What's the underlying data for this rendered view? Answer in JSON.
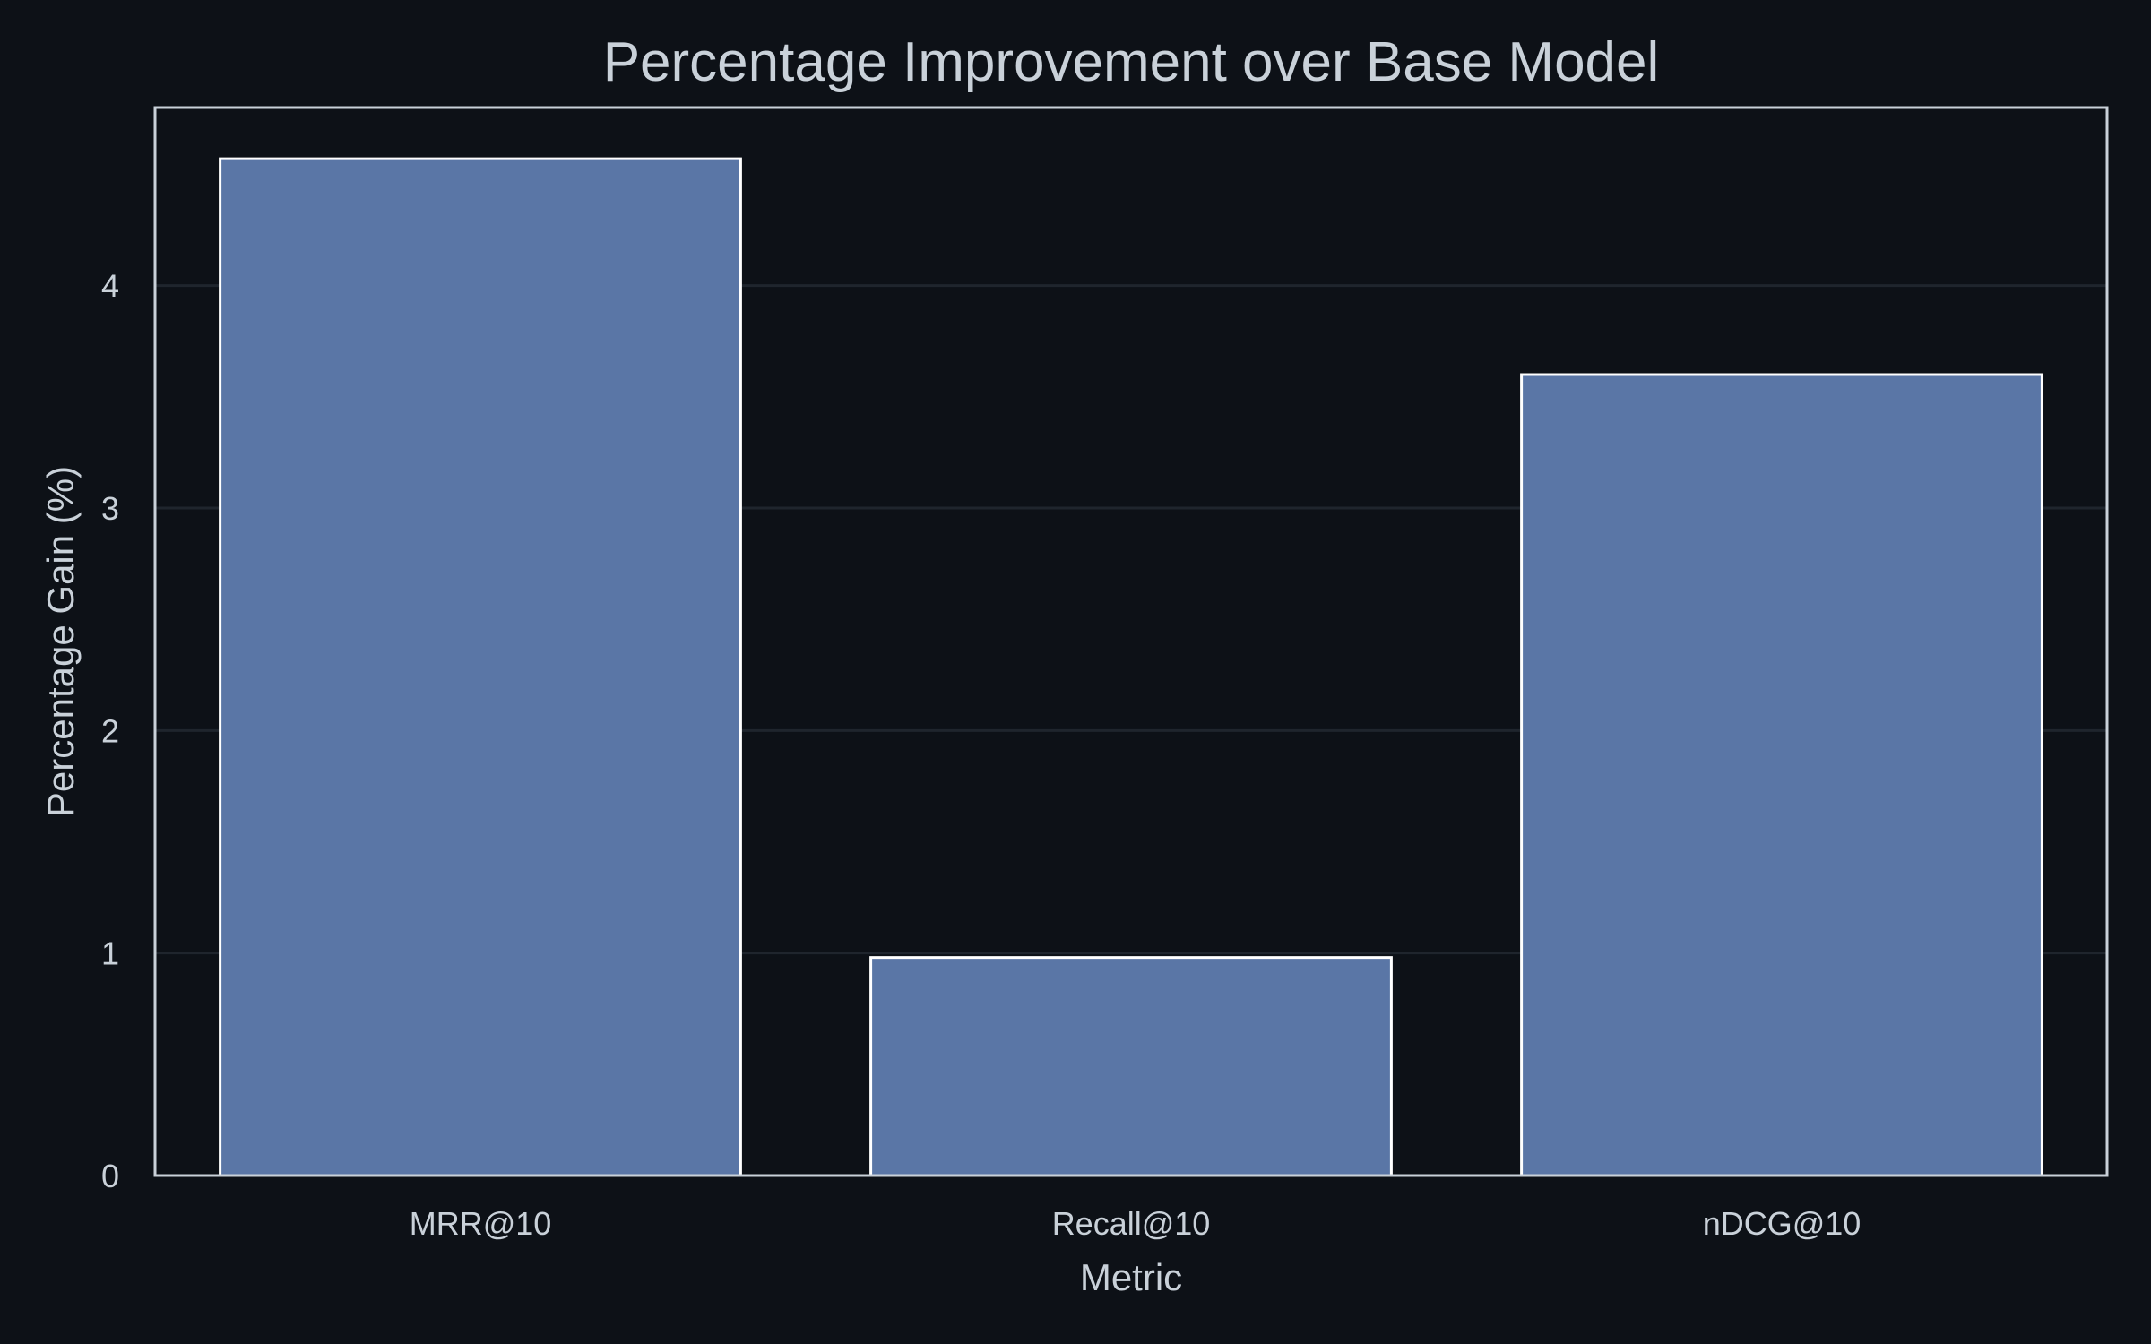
{
  "chart_data": {
    "type": "bar",
    "title": "Percentage Improvement over Base Model",
    "xlabel": "Metric",
    "ylabel": "Percentage Gain (%)",
    "categories": [
      "MRR@10",
      "Recall@10",
      "nDCG@10"
    ],
    "values": [
      4.57,
      0.98,
      3.6
    ],
    "ylim": [
      0,
      4.8
    ],
    "yticks": [
      "0",
      "1",
      "2",
      "3",
      "4"
    ],
    "grid": true,
    "legend": "none"
  },
  "colors": {
    "background": "#0d1117",
    "bar_fill": "#5a76a6",
    "bar_edge": "#ffffff",
    "frame": "#c9d1d9",
    "grid": "#1f252d",
    "text": "#c9d1d9"
  }
}
